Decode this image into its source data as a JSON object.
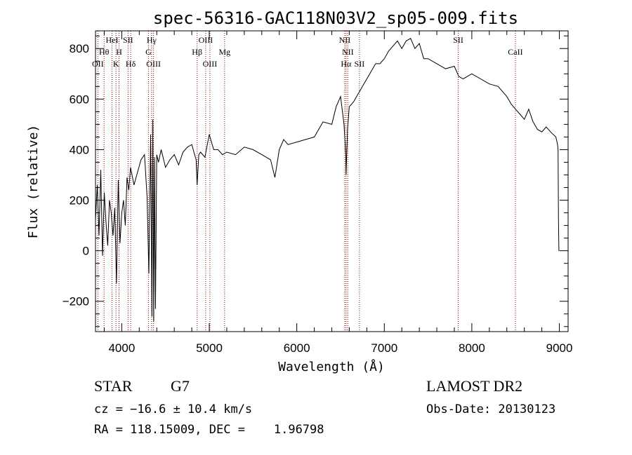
{
  "chart_data": {
    "type": "line",
    "title": "spec-56316-GAC118N03V2_sp05-009.fits",
    "xlabel": "Wavelength (Å)",
    "ylabel": "Flux (relative)",
    "xlim": [
      3700,
      9100
    ],
    "ylim": [
      -320,
      870
    ],
    "grid": false,
    "x_ticks": [
      4000,
      5000,
      6000,
      7000,
      8000,
      9000
    ],
    "x_tick_labels": [
      "4000",
      "5000",
      "6000",
      "7000",
      "8000",
      "9000"
    ],
    "y_ticks": [
      -200,
      0,
      200,
      400,
      600,
      800
    ],
    "y_tick_labels": [
      "−200",
      "0",
      "200",
      "400",
      "600",
      "800"
    ],
    "line_color": "#000000",
    "marker_color": "#8b0000",
    "spectrum": {
      "x": [
        3700,
        3720,
        3740,
        3760,
        3780,
        3800,
        3820,
        3840,
        3860,
        3880,
        3900,
        3920,
        3940,
        3960,
        3980,
        4000,
        4020,
        4040,
        4060,
        4080,
        4100,
        4140,
        4180,
        4220,
        4260,
        4290,
        4310,
        4330,
        4345,
        4355,
        4365,
        4375,
        4385,
        4400,
        4420,
        4450,
        4500,
        4550,
        4600,
        4650,
        4700,
        4750,
        4800,
        4850,
        4861,
        4880,
        4900,
        4950,
        5000,
        5050,
        5100,
        5150,
        5200,
        5300,
        5400,
        5500,
        5600,
        5700,
        5750,
        5800,
        5850,
        5900,
        6000,
        6100,
        6200,
        6300,
        6400,
        6450,
        6500,
        6540,
        6560,
        6563,
        6580,
        6600,
        6650,
        6700,
        6750,
        6800,
        6850,
        6900,
        6950,
        7000,
        7050,
        7100,
        7150,
        7200,
        7250,
        7300,
        7350,
        7400,
        7450,
        7500,
        7600,
        7700,
        7800,
        7850,
        7900,
        8000,
        8100,
        8200,
        8300,
        8400,
        8450,
        8500,
        8550,
        8600,
        8650,
        8700,
        8750,
        8800,
        8850,
        8900,
        8930,
        8960,
        8980,
        8985,
        8990,
        8995,
        9000
      ],
      "y": [
        120,
        260,
        60,
        320,
        -20,
        230,
        110,
        20,
        200,
        150,
        60,
        170,
        -130,
        280,
        30,
        150,
        200,
        100,
        290,
        240,
        330,
        260,
        310,
        360,
        380,
        210,
        -90,
        460,
        -260,
        520,
        -280,
        370,
        -230,
        380,
        350,
        400,
        330,
        360,
        380,
        340,
        390,
        410,
        420,
        360,
        260,
        380,
        390,
        370,
        460,
        400,
        400,
        380,
        390,
        380,
        410,
        400,
        380,
        360,
        290,
        400,
        440,
        420,
        430,
        440,
        450,
        510,
        500,
        570,
        610,
        500,
        380,
        300,
        480,
        570,
        590,
        620,
        650,
        680,
        710,
        740,
        740,
        760,
        790,
        810,
        830,
        800,
        830,
        840,
        800,
        820,
        760,
        760,
        740,
        720,
        730,
        690,
        680,
        700,
        680,
        660,
        650,
        610,
        580,
        560,
        540,
        520,
        560,
        510,
        480,
        470,
        490,
        470,
        460,
        450,
        420,
        400,
        120,
        0,
        0
      ]
    },
    "lines": [
      {
        "label": "OII",
        "x": 3727,
        "row": 3
      },
      {
        "label": "Hθ",
        "x": 3798,
        "row": 2
      },
      {
        "label": "HeI",
        "x": 3889,
        "row": 1
      },
      {
        "label": "K",
        "x": 3934,
        "row": 3
      },
      {
        "label": "H",
        "x": 3969,
        "row": 2
      },
      {
        "label": "SII",
        "x": 4072,
        "row": 1
      },
      {
        "label": "Hδ",
        "x": 4102,
        "row": 3
      },
      {
        "label": "G",
        "x": 4305,
        "row": 2
      },
      {
        "label": "Hγ",
        "x": 4341,
        "row": 1
      },
      {
        "label": "OIII",
        "x": 4363,
        "row": 3
      },
      {
        "label": "Hβ",
        "x": 4861,
        "row": 2
      },
      {
        "label": "OIII",
        "x": 4959,
        "row": 1
      },
      {
        "label": "OIII",
        "x": 5007,
        "row": 3
      },
      {
        "label": "Mg",
        "x": 5175,
        "row": 2
      },
      {
        "label": "NII",
        "x": 6548,
        "row": 1
      },
      {
        "label": "Hα",
        "x": 6563,
        "row": 3
      },
      {
        "label": "NII",
        "x": 6583,
        "row": 2
      },
      {
        "label": "SII",
        "x": 6716,
        "row": 3
      },
      {
        "label": "SII",
        "x": 7845,
        "row": 1
      },
      {
        "label": "CaII",
        "x": 8498,
        "row": 2
      }
    ]
  },
  "info": {
    "class_label": "STAR",
    "subclass_label": "G7",
    "cz_line": "cz = −16.6 ± 10.4 km/s",
    "coords_line": "RA = 118.15009, DEC =    1.96798",
    "survey_label": "LAMOST DR2",
    "obs_date_line": "Obs-Date: 20130123"
  }
}
